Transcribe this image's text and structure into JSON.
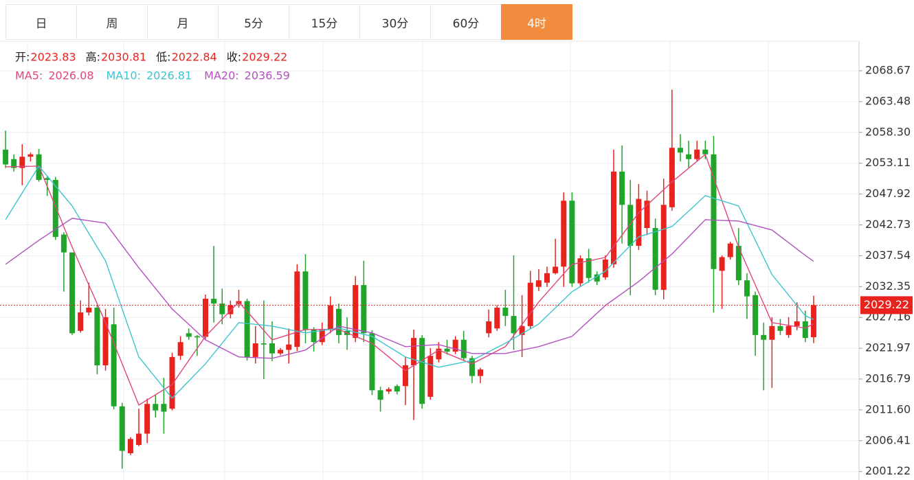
{
  "tabs": [
    "日",
    "周",
    "月",
    "5分",
    "15分",
    "30分",
    "60分",
    "4时"
  ],
  "active_tab": 7,
  "chart_data": {
    "type": "candlestick",
    "up_color": "#e8231d",
    "down_color": "#20a52a",
    "ohlc_labels": [
      "开:",
      "高:",
      "低:",
      "收:"
    ],
    "open": [
      2055.4,
      2053.8,
      2052.3,
      2054.2,
      2054.6,
      2050.6,
      2050.3,
      2041.1,
      2038.1,
      2024.9,
      2028.0,
      2028.8,
      2019.1,
      2026.0,
      2012.2,
      2004.3,
      2005.7,
      2007.6,
      2012.6,
      2012.6,
      2011.8,
      2020.7,
      2024.5,
      2024.0,
      2023.9,
      2030.3,
      2029.5,
      2027.7,
      2029.4,
      2029.9,
      2020.5,
      2022.8,
      2022.8,
      2021.1,
      2021.7,
      2022.2,
      2034.9,
      2025.1,
      2023.0,
      2025.1,
      2028.6,
      2024.9,
      2023.7,
      2032.6,
      2024.5,
      2014.9,
      2014.7,
      2015.6,
      2015.6,
      2019.1,
      2023.7,
      2013.8,
      2020.1,
      2021.9,
      2021.4,
      2023.4,
      2020.3,
      2017.3,
      2024.5,
      2025.3,
      2028.8,
      2027.4,
      2024.2,
      2025.7,
      2032.3,
      2033.0,
      2034.6,
      2035.7,
      2046.8,
      2032.9,
      2037.1,
      2034.4,
      2033.9,
      2036.1,
      2051.7,
      2046.1,
      2039.2,
      2042.2,
      2042.2,
      2031.8,
      2045.7,
      2055.7,
      2054.6,
      2053.8,
      2055.4,
      2054.6,
      2035.0,
      2037.3,
      2039.2,
      2033.4,
      2030.9,
      2024.2,
      2023.4,
      2025.7,
      2024.2,
      2025.7,
      2026.5,
      2023.83
    ],
    "close": [
      2052.9,
      2052.3,
      2054.2,
      2054.6,
      2050.3,
      2050.3,
      2040.7,
      2038.1,
      2024.5,
      2028.0,
      2028.8,
      2019.1,
      2027.2,
      2012.2,
      2004.7,
      2006.7,
      2007.6,
      2012.6,
      2011.5,
      2011.3,
      2020.5,
      2023.0,
      2023.9,
      2023.8,
      2030.3,
      2029.5,
      2027.7,
      2029.2,
      2029.9,
      2020.5,
      2022.8,
      2022.6,
      2021.1,
      2021.7,
      2022.6,
      2034.9,
      2025.1,
      2023.0,
      2025.1,
      2029.2,
      2024.2,
      2024.2,
      2032.6,
      2024.5,
      2014.9,
      2013.3,
      2015.1,
      2014.7,
      2019.1,
      2023.7,
      2012.6,
      2020.7,
      2021.9,
      2021.4,
      2023.4,
      2020.3,
      2017.3,
      2018.4,
      2026.5,
      2028.8,
      2027.4,
      2024.5,
      2025.7,
      2033.0,
      2033.4,
      2034.6,
      2035.7,
      2046.8,
      2032.9,
      2037.1,
      2033.8,
      2033.2,
      2036.9,
      2051.7,
      2046.1,
      2039.2,
      2047.1,
      2046.8,
      2031.8,
      2046.1,
      2055.7,
      2054.9,
      2053.8,
      2055.4,
      2054.6,
      2035.3,
      2037.3,
      2039.6,
      2033.4,
      2030.7,
      2024.2,
      2023.4,
      2025.7,
      2024.9,
      2025.7,
      2026.5,
      2023.7,
      2029.22
    ],
    "high": [
      2058.6,
      2054.6,
      2056.3,
      2054.9,
      2055.5,
      2050.9,
      2050.8,
      2041.5,
      2038.1,
      2030.0,
      2033.0,
      2029.2,
      2028.6,
      2028.8,
      2012.8,
      2007.0,
      2011.8,
      2013.5,
      2014.2,
      2017.0,
      2021.2,
      2024.0,
      2025.3,
      2024.2,
      2031.0,
      2039.2,
      2032.0,
      2030.0,
      2031.8,
      2030.3,
      2025.7,
      2030.0,
      2026.5,
      2022.0,
      2025.3,
      2036.1,
      2037.8,
      2025.5,
      2026.3,
      2030.7,
      2029.5,
      2027.2,
      2034.1,
      2036.7,
      2025.0,
      2015.5,
      2015.4,
      2015.9,
      2020.5,
      2025.1,
      2024.2,
      2022.0,
      2023.0,
      2023.4,
      2024.0,
      2024.9,
      2020.7,
      2018.7,
      2028.5,
      2029.2,
      2031.8,
      2037.6,
      2030.9,
      2035.0,
      2035.3,
      2035.7,
      2040.4,
      2048.2,
      2048.2,
      2037.6,
      2038.7,
      2034.9,
      2037.6,
      2055.4,
      2056.1,
      2050.3,
      2049.6,
      2048.5,
      2043.8,
      2050.5,
      2065.5,
      2058.0,
      2056.9,
      2056.9,
      2056.9,
      2057.7,
      2037.6,
      2039.9,
      2042.2,
      2034.6,
      2031.5,
      2026.3,
      2027.2,
      2026.9,
      2027.2,
      2029.7,
      2028.3,
      2030.81
    ],
    "low": [
      2052.3,
      2051.7,
      2049.4,
      2053.4,
      2050.0,
      2047.6,
      2040.2,
      2031.5,
      2024.2,
      2024.6,
      2027.5,
      2017.6,
      2018.2,
      2011.7,
      2001.7,
      2004.0,
      2005.5,
      2006.0,
      2010.3,
      2007.6,
      2011.5,
      2020.0,
      2023.4,
      2020.7,
      2023.5,
      2026.3,
      2026.0,
      2027.0,
      2028.8,
      2019.9,
      2019.4,
      2016.8,
      2019.8,
      2020.8,
      2019.4,
      2021.5,
      2022.8,
      2021.4,
      2022.5,
      2024.5,
      2022.8,
      2021.7,
      2023.0,
      2023.0,
      2014.1,
      2011.3,
      2014.3,
      2014.2,
      2012.4,
      2009.9,
      2011.8,
      2013.3,
      2019.6,
      2020.9,
      2021.0,
      2019.9,
      2016.1,
      2016.1,
      2023.8,
      2024.9,
      2025.7,
      2021.7,
      2020.5,
      2025.3,
      2031.6,
      2032.3,
      2034.4,
      2032.3,
      2032.3,
      2032.3,
      2033.0,
      2032.6,
      2033.5,
      2035.5,
      2039.6,
      2030.9,
      2038.5,
      2041.0,
      2030.9,
      2030.2,
      2045.1,
      2053.4,
      2052.3,
      2053.4,
      2053.8,
      2028.0,
      2028.6,
      2036.9,
      2032.6,
      2026.9,
      2020.7,
      2014.9,
      2015.3,
      2024.2,
      2023.7,
      2025.0,
      2023.0,
      2022.84
    ],
    "ma": [
      {
        "name": "MA5:",
        "color": "#e0457b",
        "x": [
          0,
          4,
          8,
          12,
          16,
          20,
          24,
          28,
          32,
          36,
          40,
          44,
          48,
          52,
          56,
          60,
          64,
          68,
          72,
          76,
          80,
          84,
          88,
          92,
          96,
          97
        ],
        "values": [
          2052.5,
          2052.62,
          2038.99,
          2026.28,
          2012.42,
          2015.89,
          2023.97,
          2029.75,
          2023.39,
          2025.13,
          2025.13,
          2022.82,
          2018.2,
          2021.66,
          2019.35,
          2022.24,
          2029.75,
          2036.1,
          2037.25,
          2044.76,
          2049.96,
          2054.58,
          2038.99,
          2026.28,
          2025.36,
          2026.08
        ]
      },
      {
        "name": "MA10:",
        "color": "#3cc4d0",
        "x": [
          0,
          4,
          8,
          12,
          16,
          20,
          24,
          28,
          32,
          36,
          40,
          44,
          48,
          52,
          56,
          60,
          64,
          68,
          72,
          76,
          80,
          84,
          88,
          92,
          96,
          97
        ],
        "values": [
          2043.61,
          2052.62,
          2045.92,
          2036.68,
          2020.51,
          2013.58,
          2019.35,
          2026.28,
          2025.7,
          2024.55,
          2025.36,
          2023.97,
          2020.51,
          2018.77,
          2019.93,
          2022.82,
          2026.05,
          2031.48,
          2034.94,
          2040.72,
          2042.45,
          2047.65,
          2045.92,
          2034.37,
          2027.44,
          2026.81
        ]
      },
      {
        "name": "MA20:",
        "color": "#b34fc0",
        "x": [
          0,
          4,
          8,
          12,
          16,
          20,
          24,
          28,
          32,
          36,
          40,
          44,
          48,
          52,
          56,
          60,
          64,
          68,
          72,
          76,
          80,
          84,
          88,
          92,
          96,
          97
        ],
        "values": [
          2036.1,
          2040.14,
          2043.84,
          2043.03,
          2035.52,
          2028.59,
          2023.39,
          2020.51,
          2020.28,
          2021.66,
          2025.7,
          2024.55,
          2022.24,
          2022.59,
          2021.08,
          2021.08,
          2022.24,
          2023.97,
          2029.17,
          2033.21,
          2037.83,
          2043.61,
          2043.38,
          2041.87,
          2037.6,
          2036.59
        ]
      }
    ],
    "ylim": [
      1999.8,
      2073.64
    ],
    "yticks": [
      2068.67,
      2063.48,
      {
        "value": 2058.3,
        "label": "2058.30"
      },
      2053.11,
      2047.92,
      2042.73,
      2037.54,
      2032.35,
      2027.16,
      2021.97,
      2016.79,
      {
        "value": 2011.6,
        "label": "2011.60"
      },
      2006.41,
      2001.22
    ],
    "grid": true
  }
}
